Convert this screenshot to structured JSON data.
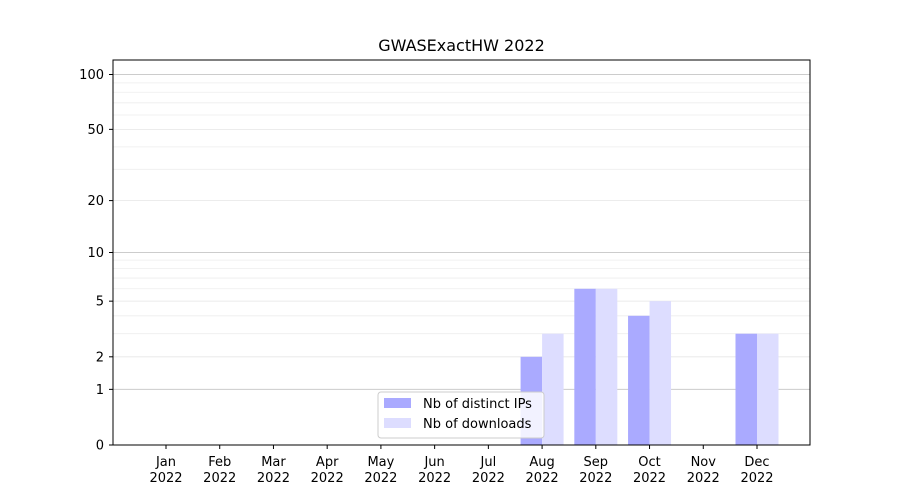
{
  "chart_data": {
    "type": "bar",
    "title": "GWASExactHW 2022",
    "xlabel": "",
    "ylabel": "",
    "categories": [
      [
        "Jan",
        "2022"
      ],
      [
        "Feb",
        "2022"
      ],
      [
        "Mar",
        "2022"
      ],
      [
        "Apr",
        "2022"
      ],
      [
        "May",
        "2022"
      ],
      [
        "Jun",
        "2022"
      ],
      [
        "Jul",
        "2022"
      ],
      [
        "Aug",
        "2022"
      ],
      [
        "Sep",
        "2022"
      ],
      [
        "Oct",
        "2022"
      ],
      [
        "Nov",
        "2022"
      ],
      [
        "Dec",
        "2022"
      ]
    ],
    "series": [
      {
        "name": "Nb of distinct IPs",
        "color": "#aaaaff",
        "values": [
          0,
          0,
          0,
          0,
          0,
          0,
          0,
          2,
          6,
          4,
          0,
          3
        ]
      },
      {
        "name": "Nb of downloads",
        "color": "#ddddff",
        "values": [
          0,
          0,
          0,
          0,
          0,
          0,
          0,
          3,
          6,
          5,
          0,
          3
        ]
      }
    ],
    "yscale": "symlog",
    "ylim": [
      0,
      120
    ],
    "yticks": [
      0,
      1,
      2,
      5,
      10,
      20,
      50,
      100
    ],
    "ytick_labels": [
      "0",
      "1",
      "2",
      "5",
      "10",
      "20",
      "50",
      "100"
    ],
    "grid": true,
    "legend_position": "lower center"
  }
}
